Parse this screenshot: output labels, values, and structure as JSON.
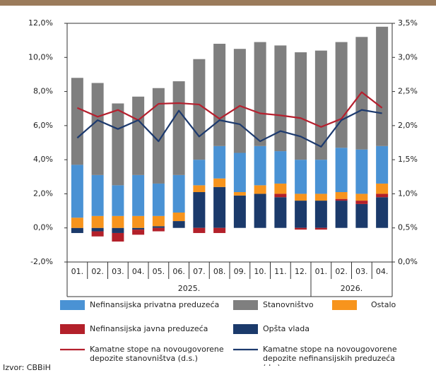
{
  "chart_data": {
    "type": "stacked_bar_line",
    "source": "Izvor: CBBiH",
    "groups": [
      {
        "label": "2025.",
        "categories": [
          "01.",
          "02.",
          "03.",
          "04.",
          "05.",
          "06.",
          "07.",
          "08.",
          "09.",
          "10.",
          "11.",
          "12."
        ]
      },
      {
        "label": "2026.",
        "categories": [
          "01.",
          "02.",
          "03.",
          "04."
        ]
      }
    ],
    "series": [
      {
        "name": "Nefinansijska privatna preduzeća",
        "type": "bar",
        "color": "#4a92d4",
        "values": [
          3.1,
          2.4,
          1.8,
          2.4,
          1.9,
          2.2,
          1.5,
          1.9,
          2.3,
          2.3,
          1.9,
          2.0,
          2.0,
          2.6,
          2.6,
          2.2
        ]
      },
      {
        "name": "Stanovništvo",
        "type": "bar",
        "color": "#7f7f7f",
        "values": [
          5.1,
          5.4,
          4.8,
          4.6,
          5.6,
          5.5,
          5.9,
          6.0,
          6.1,
          6.1,
          6.2,
          6.3,
          6.4,
          6.2,
          6.6,
          7.0
        ]
      },
      {
        "name": "Ostalo",
        "type": "bar",
        "color": "#f7941d",
        "values": [
          0.6,
          0.7,
          0.7,
          0.7,
          0.6,
          0.5,
          0.4,
          0.5,
          0.2,
          0.5,
          0.6,
          0.4,
          0.4,
          0.4,
          0.4,
          0.6
        ]
      },
      {
        "name": "Nefinansijska javna preduzeća",
        "type": "bar",
        "color": "#b3202a",
        "values": [
          0,
          -0.3,
          -0.5,
          -0.3,
          -0.2,
          0,
          -0.3,
          -0.3,
          0,
          0,
          0.2,
          -0.1,
          -0.1,
          0.1,
          0.2,
          0.2
        ]
      },
      {
        "name": "Opšta vlada",
        "type": "bar",
        "color": "#1b3a6b",
        "values": [
          -0.3,
          -0.2,
          -0.3,
          -0.1,
          0.1,
          0.4,
          2.1,
          2.4,
          1.9,
          2.0,
          1.8,
          1.6,
          1.6,
          1.6,
          1.4,
          1.8
        ]
      },
      {
        "name": "Kamatne stope na novougovorene depozite stanovništva (d.s.)",
        "type": "line",
        "axis": "y2",
        "color": "#b5202e",
        "values": [
          2.26,
          2.13,
          2.23,
          2.08,
          2.32,
          2.33,
          2.31,
          2.1,
          2.29,
          2.18,
          2.15,
          2.11,
          1.98,
          2.1,
          2.49,
          2.26
        ]
      },
      {
        "name": "Kamatne stope na novougovorene depozite nefinansijskih preduzeća (d.s)",
        "type": "line",
        "axis": "y2",
        "color": "#1d3a6e",
        "values": [
          1.82,
          2.08,
          1.95,
          2.08,
          1.77,
          2.22,
          1.84,
          2.08,
          2.02,
          1.77,
          1.92,
          1.84,
          1.69,
          2.08,
          2.23,
          2.18
        ]
      }
    ],
    "ylim": [
      -2,
      12
    ],
    "yticks": [
      {
        "value": -2,
        "label": "-2,0%"
      },
      {
        "value": 0,
        "label": "0,0%"
      },
      {
        "value": 2,
        "label": "2,0%"
      },
      {
        "value": 4,
        "label": "4,0%"
      },
      {
        "value": 6,
        "label": "6,0%"
      },
      {
        "value": 8,
        "label": "8,0%"
      },
      {
        "value": 10,
        "label": "10,0%"
      },
      {
        "value": 12,
        "label": "12,0%"
      }
    ],
    "y2lim": [
      0,
      3.5
    ],
    "y2ticks": [
      {
        "value": 0,
        "label": "0,0%"
      },
      {
        "value": 0.5,
        "label": "0,5%"
      },
      {
        "value": 1,
        "label": "1,0%"
      },
      {
        "value": 1.5,
        "label": "1,5%"
      },
      {
        "value": 2,
        "label": "2,0%"
      },
      {
        "value": 2.5,
        "label": "2,5%"
      },
      {
        "value": 3,
        "label": "3,0%"
      },
      {
        "value": 3.5,
        "label": "3,5%"
      }
    ]
  }
}
